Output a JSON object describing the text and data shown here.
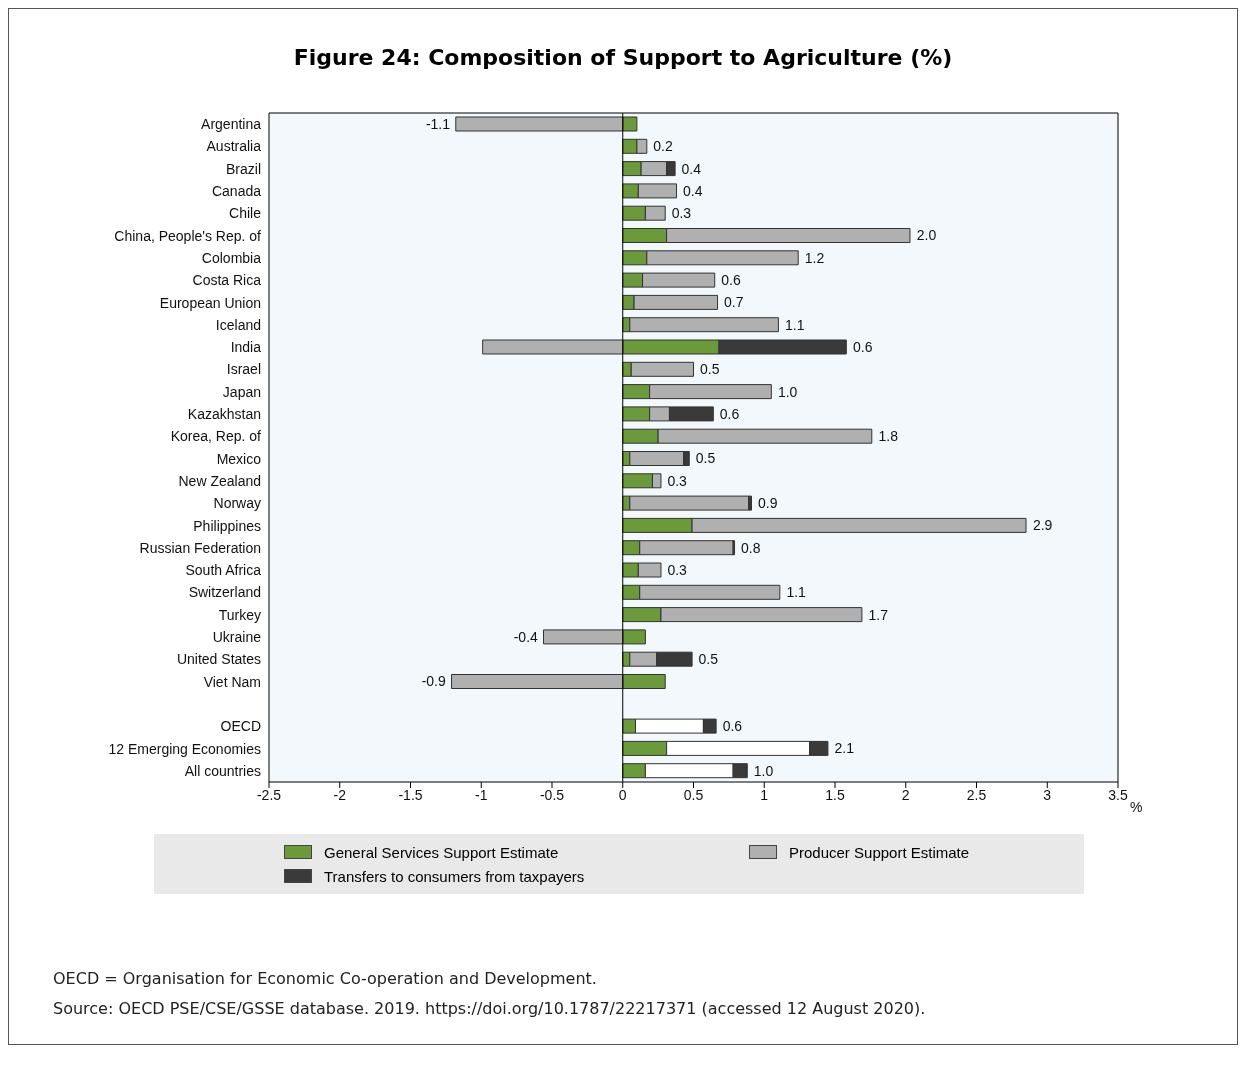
{
  "chart_data": {
    "type": "bar",
    "orientation": "horizontal",
    "stacked": true,
    "title": "Figure 24: Composition of Support to Agriculture (%)",
    "xlabel": "%",
    "categories": [
      "Argentina",
      "Australia",
      "Brazil",
      "Canada",
      "Chile",
      "China, People's Rep. of",
      "Colombia",
      "Costa Rica",
      "European Union",
      "Iceland",
      "India",
      "Israel",
      "Japan",
      "Kazakhstan",
      "Korea, Rep. of",
      "Mexico",
      "New Zealand",
      "Norway",
      "Philippines",
      "Russian Federation",
      "South Africa",
      "Switzerland",
      "Turkey",
      "Ukraine",
      "United States",
      "Viet Nam",
      null,
      "OECD",
      "12 Emerging Economies",
      "All countries"
    ],
    "series": [
      {
        "name": "General Services Support Estimate",
        "color": "#6b9a3a",
        "values": [
          0.1,
          0.1,
          0.13,
          0.11,
          0.16,
          0.31,
          0.17,
          0.14,
          0.08,
          0.05,
          0.68,
          0.06,
          0.19,
          0.19,
          0.25,
          0.05,
          0.21,
          0.05,
          0.49,
          0.12,
          0.11,
          0.12,
          0.27,
          0.16,
          0.05,
          0.3,
          null,
          0.09,
          0.31,
          0.16
        ]
      },
      {
        "name": "Producer Support Estimate",
        "color": "#b0b0b0",
        "colors": [
          "#b0b0b0",
          "#b0b0b0",
          "#b0b0b0",
          "#b0b0b0",
          "#b0b0b0",
          "#b0b0b0",
          "#b0b0b0",
          "#b0b0b0",
          "#b0b0b0",
          "#b0b0b0",
          "#b0b0b0",
          "#b0b0b0",
          "#b0b0b0",
          "#b0b0b0",
          "#b0b0b0",
          "#b0b0b0",
          "#b0b0b0",
          "#b0b0b0",
          "#b0b0b0",
          "#b0b0b0",
          "#b0b0b0",
          "#b0b0b0",
          "#b0b0b0",
          "#b0b0b0",
          "#b0b0b0",
          "#b0b0b0",
          null,
          "#ffffff",
          "#ffffff",
          "#ffffff"
        ],
        "values": [
          -1.18,
          0.07,
          0.18,
          0.27,
          0.14,
          1.72,
          1.07,
          0.51,
          0.59,
          1.05,
          -0.99,
          0.44,
          0.86,
          0.14,
          1.51,
          0.38,
          0.06,
          0.84,
          2.36,
          0.66,
          0.16,
          0.99,
          1.42,
          -0.56,
          0.19,
          -1.21,
          null,
          0.48,
          1.01,
          0.62
        ]
      },
      {
        "name": "Transfers to consumers from taxpayers",
        "color": "#3a3a3a",
        "values": [
          null,
          null,
          0.06,
          null,
          null,
          null,
          null,
          null,
          null,
          null,
          0.9,
          null,
          null,
          0.31,
          null,
          0.04,
          null,
          0.02,
          null,
          0.01,
          null,
          null,
          null,
          null,
          0.25,
          null,
          null,
          0.09,
          0.13,
          0.1
        ]
      }
    ],
    "xlim": [
      -2.5,
      3.5
    ],
    "xticks": [
      -2.5,
      -2,
      -1.5,
      -1,
      -0.5,
      0,
      0.5,
      1,
      1.5,
      2,
      2.5,
      3,
      3.5
    ],
    "ref_lines": [
      {
        "axis": "x",
        "value": 0,
        "color": "#000000"
      }
    ],
    "legend": "bottom",
    "annotations": [
      {
        "text": "-1.1",
        "x": -1.18,
        "y": "Argentina"
      },
      {
        "text": "0.2",
        "x": 0.17,
        "y": "Australia"
      },
      {
        "text": "0.4",
        "x": 0.37,
        "y": "Brazil"
      },
      {
        "text": "0.4",
        "x": 0.38,
        "y": "Canada"
      },
      {
        "text": "0.3",
        "x": 0.3,
        "y": "Chile"
      },
      {
        "text": "2.0",
        "x": 2.03,
        "y": "China, People's Rep. of"
      },
      {
        "text": "1.2",
        "x": 1.24,
        "y": "Colombia"
      },
      {
        "text": "0.6",
        "x": 0.65,
        "y": "Costa Rica"
      },
      {
        "text": "0.7",
        "x": 0.67,
        "y": "European Union"
      },
      {
        "text": "1.1",
        "x": 1.1,
        "y": "Iceland"
      },
      {
        "text": "0.6",
        "x": 1.58,
        "y": "India"
      },
      {
        "text": "0.5",
        "x": 0.5,
        "y": "Israel"
      },
      {
        "text": "1.0",
        "x": 1.05,
        "y": "Japan"
      },
      {
        "text": "0.6",
        "x": 0.64,
        "y": "Kazakhstan"
      },
      {
        "text": "1.8",
        "x": 1.76,
        "y": "Korea, Rep. of"
      },
      {
        "text": "0.5",
        "x": 0.47,
        "y": "Mexico"
      },
      {
        "text": "0.3",
        "x": 0.27,
        "y": "New Zealand"
      },
      {
        "text": "0.9",
        "x": 0.91,
        "y": "Norway"
      },
      {
        "text": "2.9",
        "x": 2.85,
        "y": "Philippines"
      },
      {
        "text": "0.8",
        "x": 0.79,
        "y": "Russian Federation"
      },
      {
        "text": "0.3",
        "x": 0.27,
        "y": "South Africa"
      },
      {
        "text": "1.1",
        "x": 1.11,
        "y": "Switzerland"
      },
      {
        "text": "1.7",
        "x": 1.69,
        "y": "Turkey"
      },
      {
        "text": "-0.4",
        "x": -0.56,
        "y": "Ukraine"
      },
      {
        "text": "0.5",
        "x": 0.49,
        "y": "United States"
      },
      {
        "text": "-0.9",
        "x": -1.21,
        "y": "Viet Nam"
      },
      {
        "text": "0.6",
        "x": 0.66,
        "y": "OECD"
      },
      {
        "text": "2.1",
        "x": 1.45,
        "y": "12 Emerging Economies"
      },
      {
        "text": "1.0",
        "x": 0.88,
        "y": "All countries"
      },
      "OECD = Organisation for Economic Co-operation and Development.",
      "Source: OECD PSE/CSE/GSSE database. 2019. https://doi.org/10.1787/22217371 (accessed 12 August 2020)."
    ]
  }
}
